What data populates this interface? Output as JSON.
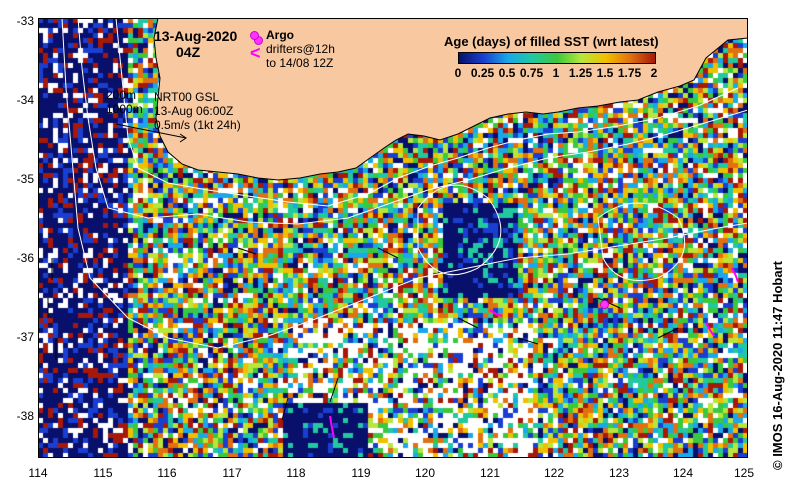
{
  "header": {
    "date": "13-Aug-2020",
    "time": "04Z"
  },
  "argo_legend": {
    "argo": "Argo",
    "drifters": "drifters@12h",
    "drifters_to": "to 14/08 12Z"
  },
  "contour_legend": {
    "c200": "200m",
    "c1000": "1000m"
  },
  "current_legend": {
    "line1": "NRT00 GSL",
    "line2": "13-Aug 06:00Z",
    "line3": "0.5m/s (1kt 24h)"
  },
  "colorbar": {
    "title": "Age (days) of filled SST (wrt latest)",
    "labels": [
      "0",
      "0.25",
      "0.5",
      "0.75",
      "1",
      "1.25",
      "1.5",
      "1.75",
      "2"
    ],
    "colors": [
      "#08106b",
      "#1a3fd0",
      "#1aa8e8",
      "#22c8a0",
      "#3cc83c",
      "#b8e63c",
      "#f0c000",
      "#e07010",
      "#a81808"
    ]
  },
  "axes": {
    "x_ticks": [
      "114",
      "115",
      "116",
      "117",
      "118",
      "119",
      "120",
      "121",
      "122",
      "123",
      "124",
      "125"
    ],
    "y_ticks": [
      "-33",
      "-34",
      "-35",
      "-36",
      "-37",
      "-38"
    ],
    "lon_range": [
      114,
      125
    ],
    "lat_range": [
      -38.5,
      -33
    ]
  },
  "credit": "© IMOS 16-Aug-2020 11:47 Hobart",
  "land_color": "#f8c8a0"
}
